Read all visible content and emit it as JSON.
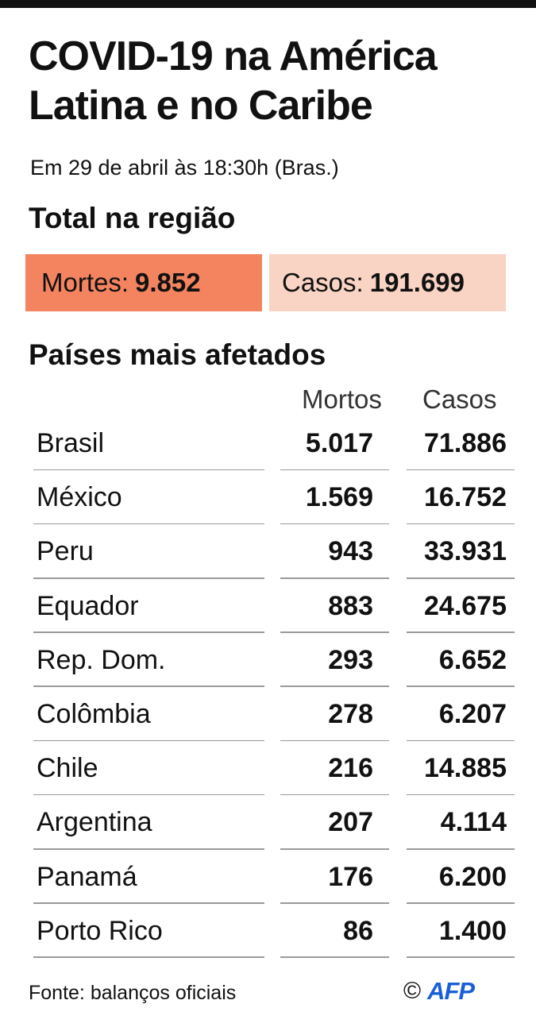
{
  "header": {
    "title": "COVID-19 na América Latina e no Caribe",
    "subtitle": "Em 29 de abril às 18:30h (Bras.)"
  },
  "totals": {
    "section_title": "Total na região",
    "deaths_label": "Mortes:",
    "deaths_value": "9.852",
    "cases_label": "Casos:",
    "cases_value": "191.699"
  },
  "countries_section_title": "Países mais afetados",
  "chart_data": {
    "type": "table",
    "title": "COVID-19 na América Latina e no Caribe",
    "columns": [
      "",
      "Mortos",
      "Casos"
    ],
    "rows": [
      {
        "country": "Brasil",
        "deaths": "5.017",
        "cases": "71.886"
      },
      {
        "country": "México",
        "deaths": "1.569",
        "cases": "16.752"
      },
      {
        "country": "Peru",
        "deaths": "943",
        "cases": "33.931"
      },
      {
        "country": "Equador",
        "deaths": "883",
        "cases": "24.675"
      },
      {
        "country": "Rep. Dom.",
        "deaths": "293",
        "cases": "6.652"
      },
      {
        "country": "Colômbia",
        "deaths": "278",
        "cases": "6.207"
      },
      {
        "country": "Chile",
        "deaths": "216",
        "cases": "14.885"
      },
      {
        "country": "Argentina",
        "deaths": "207",
        "cases": "4.114"
      },
      {
        "country": "Panamá",
        "deaths": "176",
        "cases": "6.200"
      },
      {
        "country": "Porto Rico",
        "deaths": "86",
        "cases": "1.400"
      }
    ]
  },
  "footer": {
    "source": "Fonte: balanços oficiais",
    "copyright": "©",
    "logo_text": "AFP"
  },
  "colors": {
    "deaths_box": "#f4845f",
    "cases_box": "#f9d3c3",
    "logo": "#1a5fd6"
  }
}
